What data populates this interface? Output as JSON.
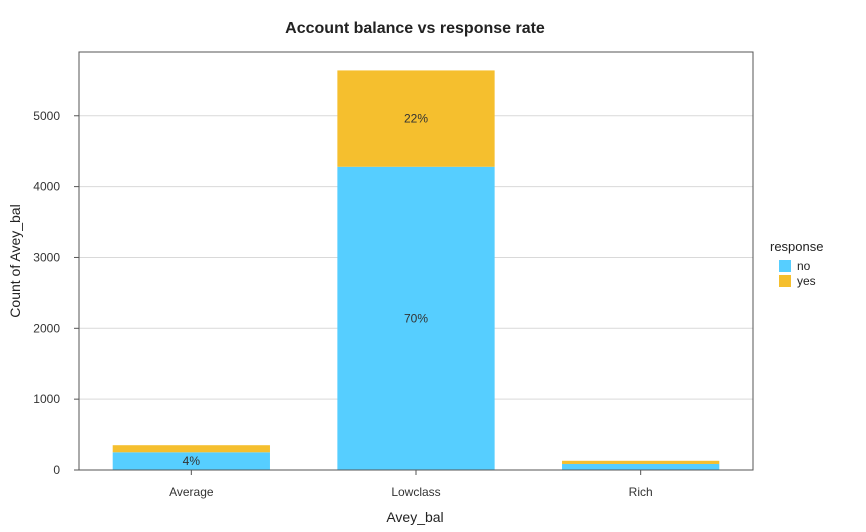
{
  "chart_data": {
    "type": "bar",
    "stacked": true,
    "title": "Account balance vs response rate",
    "xlabel": "Avey_bal",
    "ylabel": "Count of Avey_bal",
    "categories": [
      "Average",
      "Lowclass",
      "Rich"
    ],
    "series": [
      {
        "name": "no",
        "color": "#56CEFF",
        "values": [
          250,
          4280,
          85
        ]
      },
      {
        "name": "yes",
        "color": "#F5BF2E",
        "values": [
          100,
          1360,
          45
        ]
      }
    ],
    "data_labels": [
      {
        "category": "Average",
        "series": "no",
        "text": "4%"
      },
      {
        "category": "Lowclass",
        "series": "no",
        "text": "70%"
      },
      {
        "category": "Lowclass",
        "series": "yes",
        "text": "22%"
      }
    ],
    "ylim": [
      0,
      5900
    ],
    "yticks": [
      0,
      1000,
      2000,
      3000,
      4000,
      5000
    ],
    "grid": true,
    "legend": {
      "title": "response",
      "position": "right"
    }
  }
}
